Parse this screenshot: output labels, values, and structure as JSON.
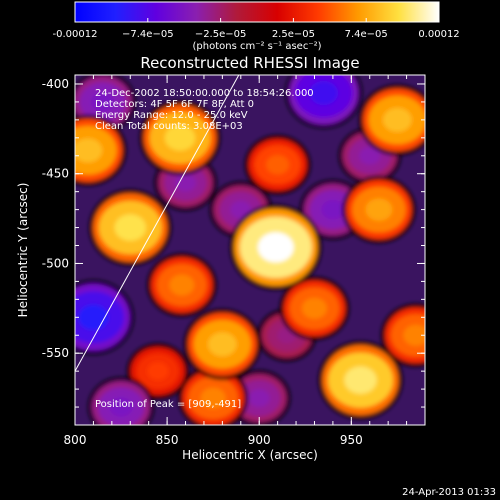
{
  "colorbar": {
    "tick_labels": [
      "-0.00012",
      "−7.4e−05",
      "−2.5e−05",
      "2.5e−05",
      "7.4e−05",
      "0.00012"
    ],
    "unit_label": "(photons cm⁻² s⁻¹ asec⁻²)",
    "min": -0.00012,
    "max": 0.00012,
    "colors": [
      "#0000ff",
      "#2020ff",
      "#6000e0",
      "#8a1fb0",
      "#b01a3a",
      "#d80000",
      "#ff3a00",
      "#ff9a00",
      "#ffe040",
      "#ffffff"
    ]
  },
  "chart_data": {
    "type": "heatmap",
    "title": "Reconstructed RHESSI Image",
    "xlabel": "Heliocentric X (arcsec)",
    "ylabel": "Heliocentric Y (arcsec)",
    "xlim": [
      800,
      990
    ],
    "ylim": [
      -590,
      -395
    ],
    "x_ticks": [
      "800",
      "850",
      "900",
      "950"
    ],
    "y_ticks": [
      "-400",
      "-450",
      "-500",
      "-550"
    ],
    "x_tick_values": [
      800,
      850,
      900,
      950
    ],
    "y_tick_values": [
      -400,
      -450,
      -500,
      -550
    ],
    "annotations": [
      "24-Dec-2002 18:50:00.000 to 18:54:26.000",
      "Detectors: 4F 5F 6F 7F 8F, Att 0",
      "Energy Range: 12.0 - 25.0 keV",
      "Clean    Total counts: 3.08E+03"
    ],
    "peak_label": "Position of Peak = [909,-491]",
    "peak": [
      909,
      -491
    ],
    "limb_line": [
      [
        800,
        -560
      ],
      [
        890,
        -393
      ]
    ],
    "blobs": [
      {
        "x": 909,
        "y": -491,
        "value": 0.00012
      },
      {
        "x": 955,
        "y": -565,
        "value": 0.0001
      },
      {
        "x": 830,
        "y": -480,
        "value": 9.5e-05
      },
      {
        "x": 857,
        "y": -430,
        "value": 9e-05
      },
      {
        "x": 807,
        "y": -437,
        "value": 8e-05
      },
      {
        "x": 880,
        "y": -545,
        "value": 8e-05
      },
      {
        "x": 858,
        "y": -512,
        "value": 6e-05
      },
      {
        "x": 975,
        "y": -420,
        "value": 8e-05
      },
      {
        "x": 965,
        "y": -470,
        "value": 7e-05
      },
      {
        "x": 930,
        "y": -525,
        "value": 6e-05
      },
      {
        "x": 875,
        "y": -575,
        "value": 6e-05
      },
      {
        "x": 910,
        "y": -445,
        "value": 5e-05
      },
      {
        "x": 985,
        "y": -540,
        "value": 6e-05
      },
      {
        "x": 845,
        "y": -560,
        "value": 4e-05
      },
      {
        "x": 810,
        "y": -530,
        "value": -9e-05
      },
      {
        "x": 935,
        "y": -405,
        "value": -8e-05
      },
      {
        "x": 940,
        "y": -470,
        "value": -5e-05
      },
      {
        "x": 815,
        "y": -410,
        "value": -5e-05
      },
      {
        "x": 860,
        "y": -455,
        "value": -4e-05
      },
      {
        "x": 890,
        "y": -470,
        "value": -4e-05
      },
      {
        "x": 825,
        "y": -580,
        "value": -5e-05
      },
      {
        "x": 900,
        "y": -575,
        "value": -4e-05
      },
      {
        "x": 960,
        "y": -440,
        "value": -4e-05
      },
      {
        "x": 915,
        "y": -540,
        "value": -3e-05
      }
    ]
  },
  "footer": {
    "timestamp": "24-Apr-2013 01:33"
  }
}
